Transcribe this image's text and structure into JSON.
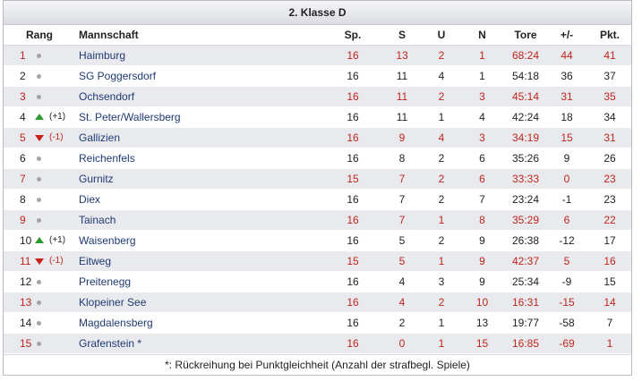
{
  "title": "2. Klasse D",
  "headers": {
    "rank": "Rang",
    "team": "Mannschaft",
    "played": "Sp.",
    "wins": "S",
    "draws": "U",
    "losses": "N",
    "goals": "Tore",
    "diff": "+/-",
    "points": "Pkt."
  },
  "rows": [
    {
      "rank": "1",
      "trend": "same",
      "move": "",
      "team": "Haimburg",
      "played": "16",
      "wins": "13",
      "draws": "2",
      "losses": "1",
      "goals": "68:24",
      "diff": "44",
      "points": "41"
    },
    {
      "rank": "2",
      "trend": "same",
      "move": "",
      "team": "SG Poggersdorf",
      "played": "16",
      "wins": "11",
      "draws": "4",
      "losses": "1",
      "goals": "54:18",
      "diff": "36",
      "points": "37"
    },
    {
      "rank": "3",
      "trend": "same",
      "move": "",
      "team": "Ochsendorf",
      "played": "16",
      "wins": "11",
      "draws": "2",
      "losses": "3",
      "goals": "45:14",
      "diff": "31",
      "points": "35"
    },
    {
      "rank": "4",
      "trend": "up",
      "move": "(+1)",
      "team": "St. Peter/Wallersberg",
      "played": "16",
      "wins": "11",
      "draws": "1",
      "losses": "4",
      "goals": "42:24",
      "diff": "18",
      "points": "34"
    },
    {
      "rank": "5",
      "trend": "down",
      "move": "(-1)",
      "team": "Gallizien",
      "played": "16",
      "wins": "9",
      "draws": "4",
      "losses": "3",
      "goals": "34:19",
      "diff": "15",
      "points": "31"
    },
    {
      "rank": "6",
      "trend": "same",
      "move": "",
      "team": "Reichenfels",
      "played": "16",
      "wins": "8",
      "draws": "2",
      "losses": "6",
      "goals": "35:26",
      "diff": "9",
      "points": "26"
    },
    {
      "rank": "7",
      "trend": "same",
      "move": "",
      "team": "Gurnitz",
      "played": "15",
      "wins": "7",
      "draws": "2",
      "losses": "6",
      "goals": "33:33",
      "diff": "0",
      "points": "23"
    },
    {
      "rank": "8",
      "trend": "same",
      "move": "",
      "team": "Diex",
      "played": "16",
      "wins": "7",
      "draws": "2",
      "losses": "7",
      "goals": "23:24",
      "diff": "-1",
      "points": "23"
    },
    {
      "rank": "9",
      "trend": "same",
      "move": "",
      "team": "Tainach",
      "played": "16",
      "wins": "7",
      "draws": "1",
      "losses": "8",
      "goals": "35:29",
      "diff": "6",
      "points": "22"
    },
    {
      "rank": "10",
      "trend": "up",
      "move": "(+1)",
      "team": "Waisenberg",
      "played": "16",
      "wins": "5",
      "draws": "2",
      "losses": "9",
      "goals": "26:38",
      "diff": "-12",
      "points": "17"
    },
    {
      "rank": "11",
      "trend": "down",
      "move": "(-1)",
      "team": "Eitweg",
      "played": "15",
      "wins": "5",
      "draws": "1",
      "losses": "9",
      "goals": "42:37",
      "diff": "5",
      "points": "16"
    },
    {
      "rank": "12",
      "trend": "same",
      "move": "",
      "team": "Preitenegg",
      "played": "16",
      "wins": "4",
      "draws": "3",
      "losses": "9",
      "goals": "25:34",
      "diff": "-9",
      "points": "15"
    },
    {
      "rank": "13",
      "trend": "same",
      "move": "",
      "team": "Klopeiner See",
      "played": "16",
      "wins": "4",
      "draws": "2",
      "losses": "10",
      "goals": "16:31",
      "diff": "-15",
      "points": "14"
    },
    {
      "rank": "14",
      "trend": "same",
      "move": "",
      "team": "Magdalensberg",
      "played": "16",
      "wins": "2",
      "draws": "1",
      "losses": "13",
      "goals": "19:77",
      "diff": "-58",
      "points": "7"
    },
    {
      "rank": "15",
      "trend": "same",
      "move": "",
      "team": "Grafenstein *",
      "played": "16",
      "wins": "0",
      "draws": "1",
      "losses": "15",
      "goals": "16:85",
      "diff": "-69",
      "points": "1"
    }
  ],
  "footnote": "*: Rückreihung bei Punktgleichheit (Anzahl der strafbegl. Spiele)",
  "colors": {
    "odd_row_bg": "#e9eaee",
    "odd_row_text": "#c0261d",
    "team_text": "#1f3a73",
    "up": "#2e9b2e",
    "down": "#c8201a",
    "dot": "#a5a5a5"
  }
}
